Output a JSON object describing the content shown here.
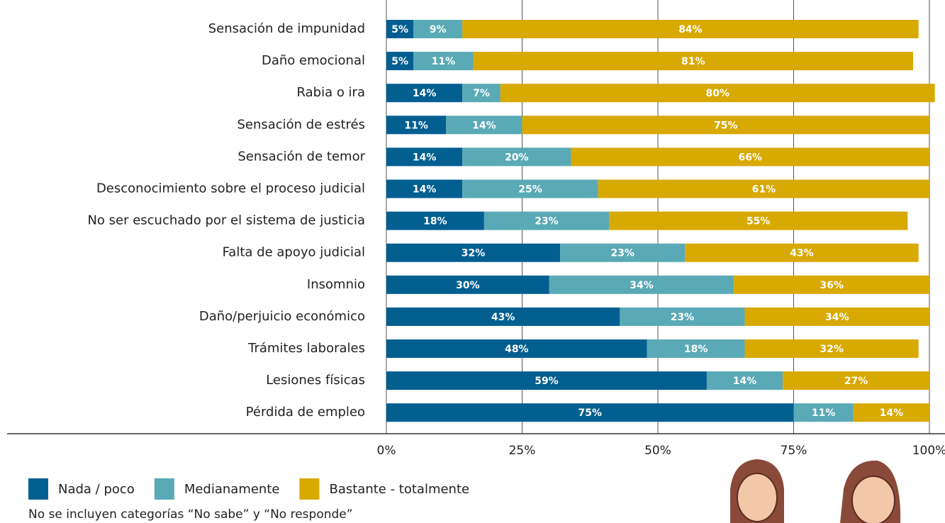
{
  "chart_data": {
    "type": "stacked-barh",
    "categories": [
      "Sensación de impunidad",
      "Daño  emocional",
      "Rabia o ira",
      "Sensación de estrés",
      "Sensación de temor",
      "Desconocimiento sobre el  proceso judicial",
      "No ser escuchado por el sistema de justicia",
      "Falta de apoyo judicial",
      "Insomnio",
      "Daño/perjuicio económico",
      "Trámites laborales",
      "Lesiones físicas",
      "Pérdida de empleo"
    ],
    "series": [
      {
        "name": "Nada / poco",
        "color": "#045f91",
        "values": [
          5,
          5,
          14,
          11,
          14,
          14,
          18,
          32,
          30,
          43,
          48,
          59,
          75
        ],
        "value_labels": [
          "5%",
          "5%",
          "14%",
          "11%",
          "14%",
          "14%",
          "18%",
          "32%",
          "30%",
          "43%",
          "48%",
          "59%",
          "75%"
        ]
      },
      {
        "name": "Medianamente",
        "color": "#5aa9b6",
        "values": [
          9,
          11,
          7,
          14,
          20,
          25,
          23,
          23,
          34,
          23,
          18,
          14,
          11
        ],
        "value_labels": [
          "9%",
          "11%",
          "7%",
          "14%",
          "20%",
          "25%",
          "23%",
          "23%",
          "34%",
          "23%",
          "18%",
          "14%",
          "11%"
        ]
      },
      {
        "name": "Bastante - totalmente",
        "color": "#d8a900",
        "values": [
          84,
          81,
          80,
          75,
          66,
          61,
          55,
          43,
          36,
          34,
          32,
          27,
          14
        ],
        "value_labels": [
          "84%",
          "81%",
          "80%",
          "75%",
          "66%",
          "61%",
          "55%",
          "43%",
          "36%",
          "34%",
          "32%",
          "27%",
          "14%"
        ]
      }
    ],
    "xlim": [
      0,
      100
    ],
    "xticks": [
      {
        "value": 0,
        "label": "0%"
      },
      {
        "value": 25,
        "label": "25%"
      },
      {
        "value": 50,
        "label": "50%"
      },
      {
        "value": 75,
        "label": "75%"
      },
      {
        "value": 100,
        "label": "100%"
      }
    ],
    "grid": true,
    "note": "No se incluyen categorías “No sabe” y “No responde”"
  }
}
